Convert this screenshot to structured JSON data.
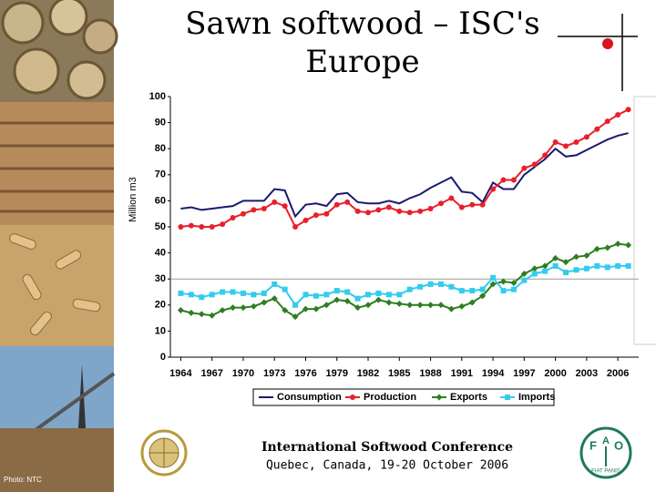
{
  "chart_data": {
    "type": "line",
    "title": [
      "Sawn softwood – ISC's",
      "Europe"
    ],
    "y_label": "Million m3",
    "x": [
      1964,
      1965,
      1966,
      1967,
      1968,
      1969,
      1970,
      1971,
      1972,
      1973,
      1974,
      1975,
      1976,
      1977,
      1978,
      1979,
      1980,
      1981,
      1982,
      1983,
      1984,
      1985,
      1986,
      1987,
      1988,
      1989,
      1990,
      1991,
      1992,
      1993,
      1994,
      1995,
      1996,
      1997,
      1998,
      1999,
      2000,
      2001,
      2002,
      2003,
      2004,
      2005,
      2006,
      2007
    ],
    "xlim": [
      1963,
      2008
    ],
    "xticks": [
      1964,
      1967,
      1970,
      1973,
      1976,
      1979,
      1982,
      1985,
      1988,
      1991,
      1994,
      1997,
      2000,
      2003,
      2006
    ],
    "ylim": [
      0,
      100
    ],
    "yticks": [
      0,
      10,
      20,
      30,
      40,
      50,
      60,
      70,
      80,
      90,
      100
    ],
    "grid": false,
    "reference_line": 30,
    "legend": "bottom",
    "series": [
      {
        "name": "Consumption",
        "color": "#1a1a6e",
        "marker": "none",
        "values": [
          57,
          57.5,
          56.5,
          57,
          57.5,
          58,
          60,
          60,
          60,
          64.5,
          64,
          54,
          58.5,
          59,
          58,
          62.5,
          63,
          59.5,
          59,
          59,
          60,
          59,
          61,
          62.5,
          65,
          67,
          69,
          63.5,
          63,
          59.5,
          67,
          64.5,
          64.5,
          70,
          73,
          76,
          80,
          77,
          77.5,
          79.5,
          81.5,
          83.5,
          85,
          86
        ]
      },
      {
        "name": "Production",
        "color": "#e8202a",
        "marker": "circle",
        "values": [
          50,
          50.5,
          50,
          50,
          51,
          53.5,
          55,
          56.5,
          57,
          59.5,
          58,
          50,
          52.5,
          54.5,
          55,
          58.5,
          59.5,
          56,
          55.5,
          56.5,
          57.5,
          56,
          55.5,
          56,
          57,
          59,
          61,
          57.5,
          58.5,
          58.5,
          64.5,
          68,
          68,
          72.5,
          74,
          77.5,
          82.5,
          81,
          82.5,
          84.5,
          87.5,
          90.5,
          93,
          95
        ]
      },
      {
        "name": "Exports",
        "color": "#2e7d22",
        "marker": "diamond",
        "values": [
          18,
          17,
          16.5,
          16,
          18,
          19,
          19,
          19.5,
          21,
          22.5,
          18,
          15.5,
          18.5,
          18.5,
          20,
          22,
          21.5,
          19,
          20,
          22,
          21,
          20.5,
          20,
          20,
          20,
          20,
          18.5,
          19.5,
          21,
          23.5,
          28,
          29,
          28.5,
          32,
          34,
          35,
          38,
          36.5,
          38.5,
          39,
          41.5,
          42,
          43.5,
          43
        ]
      },
      {
        "name": "Imports",
        "color": "#33ccee",
        "marker": "square",
        "values": [
          24.5,
          24,
          23,
          24,
          25,
          25,
          24.5,
          24,
          24.5,
          28,
          26,
          20,
          24,
          23.5,
          24,
          25.5,
          25,
          22.5,
          24,
          24.5,
          24,
          24,
          26,
          27,
          28,
          28,
          27,
          25.5,
          25.5,
          26,
          30.5,
          25.5,
          26,
          29.5,
          32,
          33,
          35,
          32.5,
          33.5,
          34,
          35,
          34.5,
          35,
          35
        ]
      }
    ]
  },
  "footer": {
    "conference": "International Softwood Conference",
    "place": "Quebec, Canada, 19-20 October 2006",
    "photo_credit": "Photo: NTC",
    "fao_motto": "FIAT PANIS",
    "fao_letters": [
      "F",
      "A",
      "O"
    ]
  }
}
